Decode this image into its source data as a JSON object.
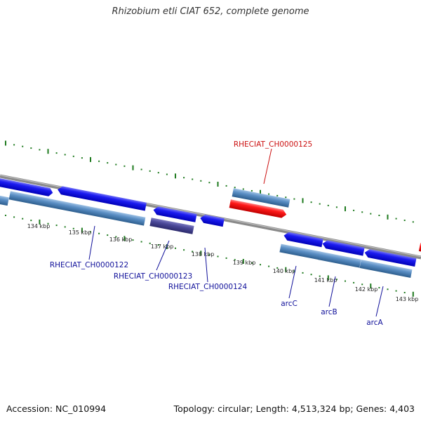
{
  "title": "Rhizobium etli CIAT 652, complete genome",
  "footer": {
    "accession": "Accession: NC_010994",
    "topology": "Topology: circular; Length: 4,513,324 bp; Genes: 4,403"
  },
  "ticks": [
    "134 kbp",
    "135 kbp",
    "136 kbp",
    "137 kbp",
    "138 kbp",
    "139 kbp",
    "140 kbp",
    "141 kbp",
    "142 kbp",
    "143 kbp"
  ],
  "gene_labels": [
    "RHECIAT_CH0000125",
    "RHECIAT_CH0000122",
    "RHECIAT_CH0000123",
    "RHECIAT_CH0000124",
    "arcC",
    "arcB",
    "arcA"
  ],
  "colors": {
    "cds_forward": "#0a0ae6",
    "cds_dark": "#3c3a8a",
    "feature_track": "#5a8ec4",
    "highlight": "#ff1111",
    "backbone": "#8a8a8a",
    "tick": "#1e7a1e",
    "label_blue": "#10109a",
    "label_red": "#cc1111"
  }
}
